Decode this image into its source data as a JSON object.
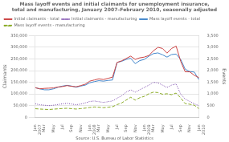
{
  "chart_data": {
    "type": "line",
    "title": "Mass layoff events and initial claimants for unemployment insurance,\ntotal and manufacturing, January 2007–February 2010, seasonally adjusted",
    "annotations": [
      "Source: U.S. Bureau of Labor Statistics"
    ],
    "ylabel": "Claimants",
    "y2label": "Events",
    "categories": [
      "Jan\n2007",
      null,
      "Mar",
      null,
      "May",
      null,
      "Jul",
      null,
      "Sep",
      null,
      "Nov",
      null,
      "Jan\n2008",
      null,
      "Mar",
      null,
      "May",
      null,
      "Jul",
      null,
      "Sep",
      null,
      "Nov",
      null,
      "Jan\n2009",
      null,
      "Mar",
      null,
      "May",
      null,
      "Jul",
      null,
      "Sep",
      null,
      "Nov",
      null,
      "Jan\n2010"
    ],
    "ylim": [
      0,
      350000
    ],
    "yticks": [
      0,
      {
        "value": 50000,
        "label": "50,000"
      },
      {
        "value": 100000,
        "label": "100,000"
      },
      {
        "value": 150000,
        "label": "150,000"
      },
      {
        "value": 200000,
        "label": "200,000"
      },
      {
        "value": 250000,
        "label": "250,000"
      },
      {
        "value": 300000,
        "label": "300,000"
      },
      {
        "value": 350000,
        "label": "350,000"
      }
    ],
    "y2lim": [
      0,
      3500
    ],
    "y2ticks": [
      0,
      500,
      {
        "value": 1000,
        "label": "1,000"
      },
      {
        "value": 1500,
        "label": "1,500"
      },
      {
        "value": 2000,
        "label": "2,000"
      },
      {
        "value": 2500,
        "label": "2,500"
      },
      {
        "value": 3000,
        "label": "3,000"
      },
      {
        "value": 3500,
        "label": "3,500"
      }
    ],
    "grid": true,
    "legend": "upper left",
    "series": [
      {
        "name": "Initial claimants - total",
        "color": "#cc4444",
        "line_style": "solid",
        "values": [
          127000,
          122000,
          124000,
          125000,
          126000,
          130000,
          132000,
          136000,
          133000,
          131000,
          136000,
          142000,
          155000,
          160000,
          165000,
          162000,
          167000,
          172000,
          235000,
          242000,
          252000,
          262000,
          248000,
          255000,
          258000,
          265000,
          285000,
          300000,
          295000,
          275000,
          295000,
          305000,
          240000,
          195000,
          195000,
          180000,
          170000
        ]
      },
      {
        "name": "Initial claimants - manufacturing",
        "color": "#7744aa",
        "line_style": "dotted",
        "values": [
          58000,
          54000,
          52000,
          50000,
          52000,
          55000,
          58000,
          60000,
          57000,
          54000,
          57000,
          62000,
          68000,
          70000,
          67000,
          64000,
          67000,
          70000,
          82000,
          92000,
          108000,
          118000,
          108000,
          118000,
          128000,
          138000,
          150000,
          148000,
          138000,
          128000,
          138000,
          143000,
          100000,
          78000,
          68000,
          58000,
          50000
        ]
      },
      {
        "name": "Mass layoff events - total",
        "color": "#4488cc",
        "line_style": "solid",
        "axis": "y2",
        "values": [
          1270,
          1220,
          1180,
          1180,
          1220,
          1290,
          1340,
          1370,
          1340,
          1290,
          1340,
          1380,
          1480,
          1530,
          1570,
          1550,
          1580,
          1600,
          2350,
          2400,
          2480,
          2530,
          2300,
          2430,
          2480,
          2620,
          2730,
          2760,
          2680,
          2580,
          2690,
          2710,
          2480,
          2060,
          1960,
          1940,
          1620
        ]
      },
      {
        "name": "Mass layoff events - manufacturing",
        "color": "#88aa22",
        "line_style": "dashed",
        "axis": "y2",
        "values": [
          370,
          355,
          345,
          335,
          350,
          365,
          378,
          388,
          372,
          355,
          372,
          395,
          425,
          445,
          435,
          415,
          435,
          455,
          545,
          615,
          740,
          860,
          740,
          840,
          900,
          1010,
          1080,
          1060,
          990,
          1010,
          970,
          1040,
          830,
          590,
          560,
          520,
          375
        ]
      }
    ]
  }
}
